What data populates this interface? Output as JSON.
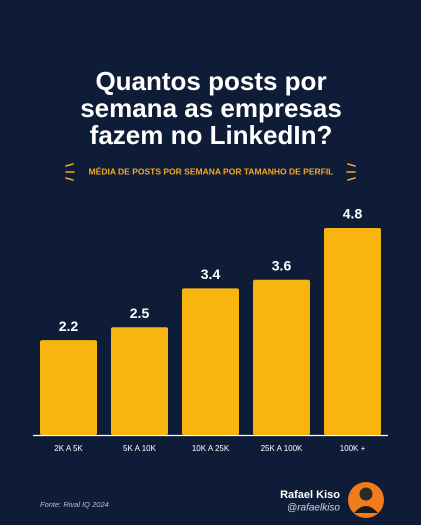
{
  "chart_data": {
    "type": "bar",
    "title": [
      "Quantos posts por",
      "semana as empresas",
      "fazem no LinkedIn?"
    ],
    "subtitle": "MÉDIA DE POSTS POR SEMANA POR TAMANHO DE PERFIL",
    "categories": [
      "2K A 5K",
      "5K A 10K",
      "10K A 25K",
      "25K A 100K",
      "100K +"
    ],
    "values": [
      2.2,
      2.5,
      3.4,
      3.6,
      4.8
    ],
    "color": "#f8b50f"
  },
  "footer": {
    "source": "Fonte: Rival IQ 2024",
    "author": "Rafael Kiso",
    "handle": "@rafaelkiso"
  }
}
